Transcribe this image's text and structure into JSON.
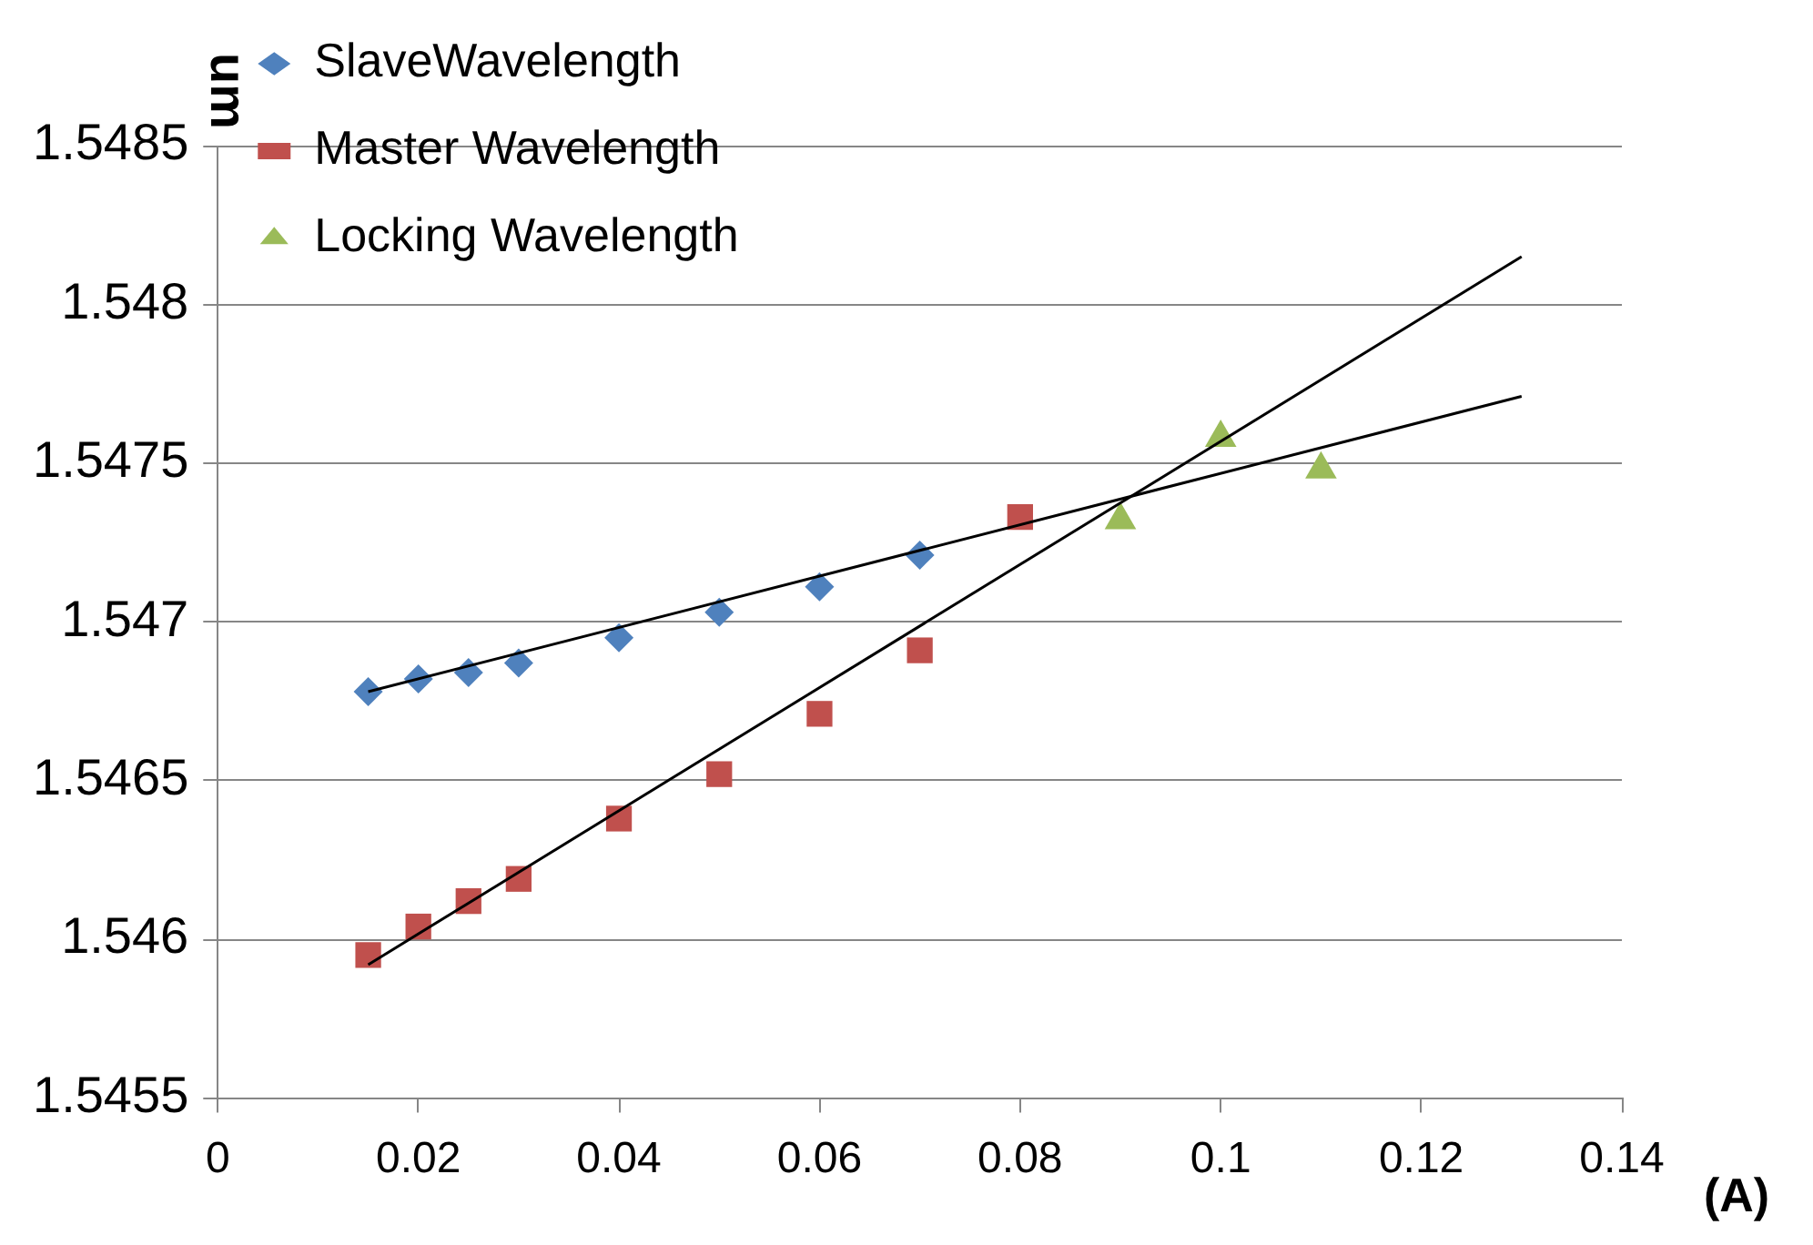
{
  "chart_data": {
    "type": "scatter",
    "xlabel": "(A)",
    "ylabel": "um",
    "xlim": [
      0,
      0.14
    ],
    "xticks": [
      0,
      0.02,
      0.04,
      0.06,
      0.08,
      0.1,
      0.12,
      0.14
    ],
    "ylim": [
      1.5455,
      1.5485
    ],
    "yticks": [
      1.5455,
      1.546,
      1.5465,
      1.547,
      1.5475,
      1.548,
      1.5485
    ],
    "grid": "y",
    "legend": "top left",
    "series": [
      {
        "name": "SlaveWavelength",
        "color": "#4f81bd",
        "marker": "diamond",
        "x": [
          0.015,
          0.02,
          0.025,
          0.03,
          0.04,
          0.05,
          0.06,
          0.07
        ],
        "values": [
          1.54678,
          1.54682,
          1.54684,
          1.54687,
          1.54695,
          1.54703,
          1.54711,
          1.54721
        ]
      },
      {
        "name": "Master Wavelength",
        "color": "#c0504d",
        "marker": "square",
        "x": [
          0.015,
          0.02,
          0.025,
          0.03,
          0.04,
          0.05,
          0.06,
          0.07,
          0.08
        ],
        "values": [
          1.54595,
          1.54604,
          1.54612,
          1.54619,
          1.54638,
          1.54652,
          1.54671,
          1.54691,
          1.54733
        ]
      },
      {
        "name": "Locking Wavelength",
        "color": "#9bbb59",
        "marker": "triangle",
        "x": [
          0.09,
          0.1,
          0.11
        ],
        "values": [
          1.54732,
          1.54758,
          1.54748
        ]
      },
      {
        "type": "line",
        "color": "#000000",
        "marker": "none",
        "x": [
          0.015,
          0.13
        ],
        "values": [
          1.54678,
          1.54771
        ]
      },
      {
        "type": "line",
        "color": "#000000",
        "marker": "none",
        "x": [
          0.015,
          0.13
        ],
        "values": [
          1.54592,
          1.54815
        ]
      }
    ]
  }
}
